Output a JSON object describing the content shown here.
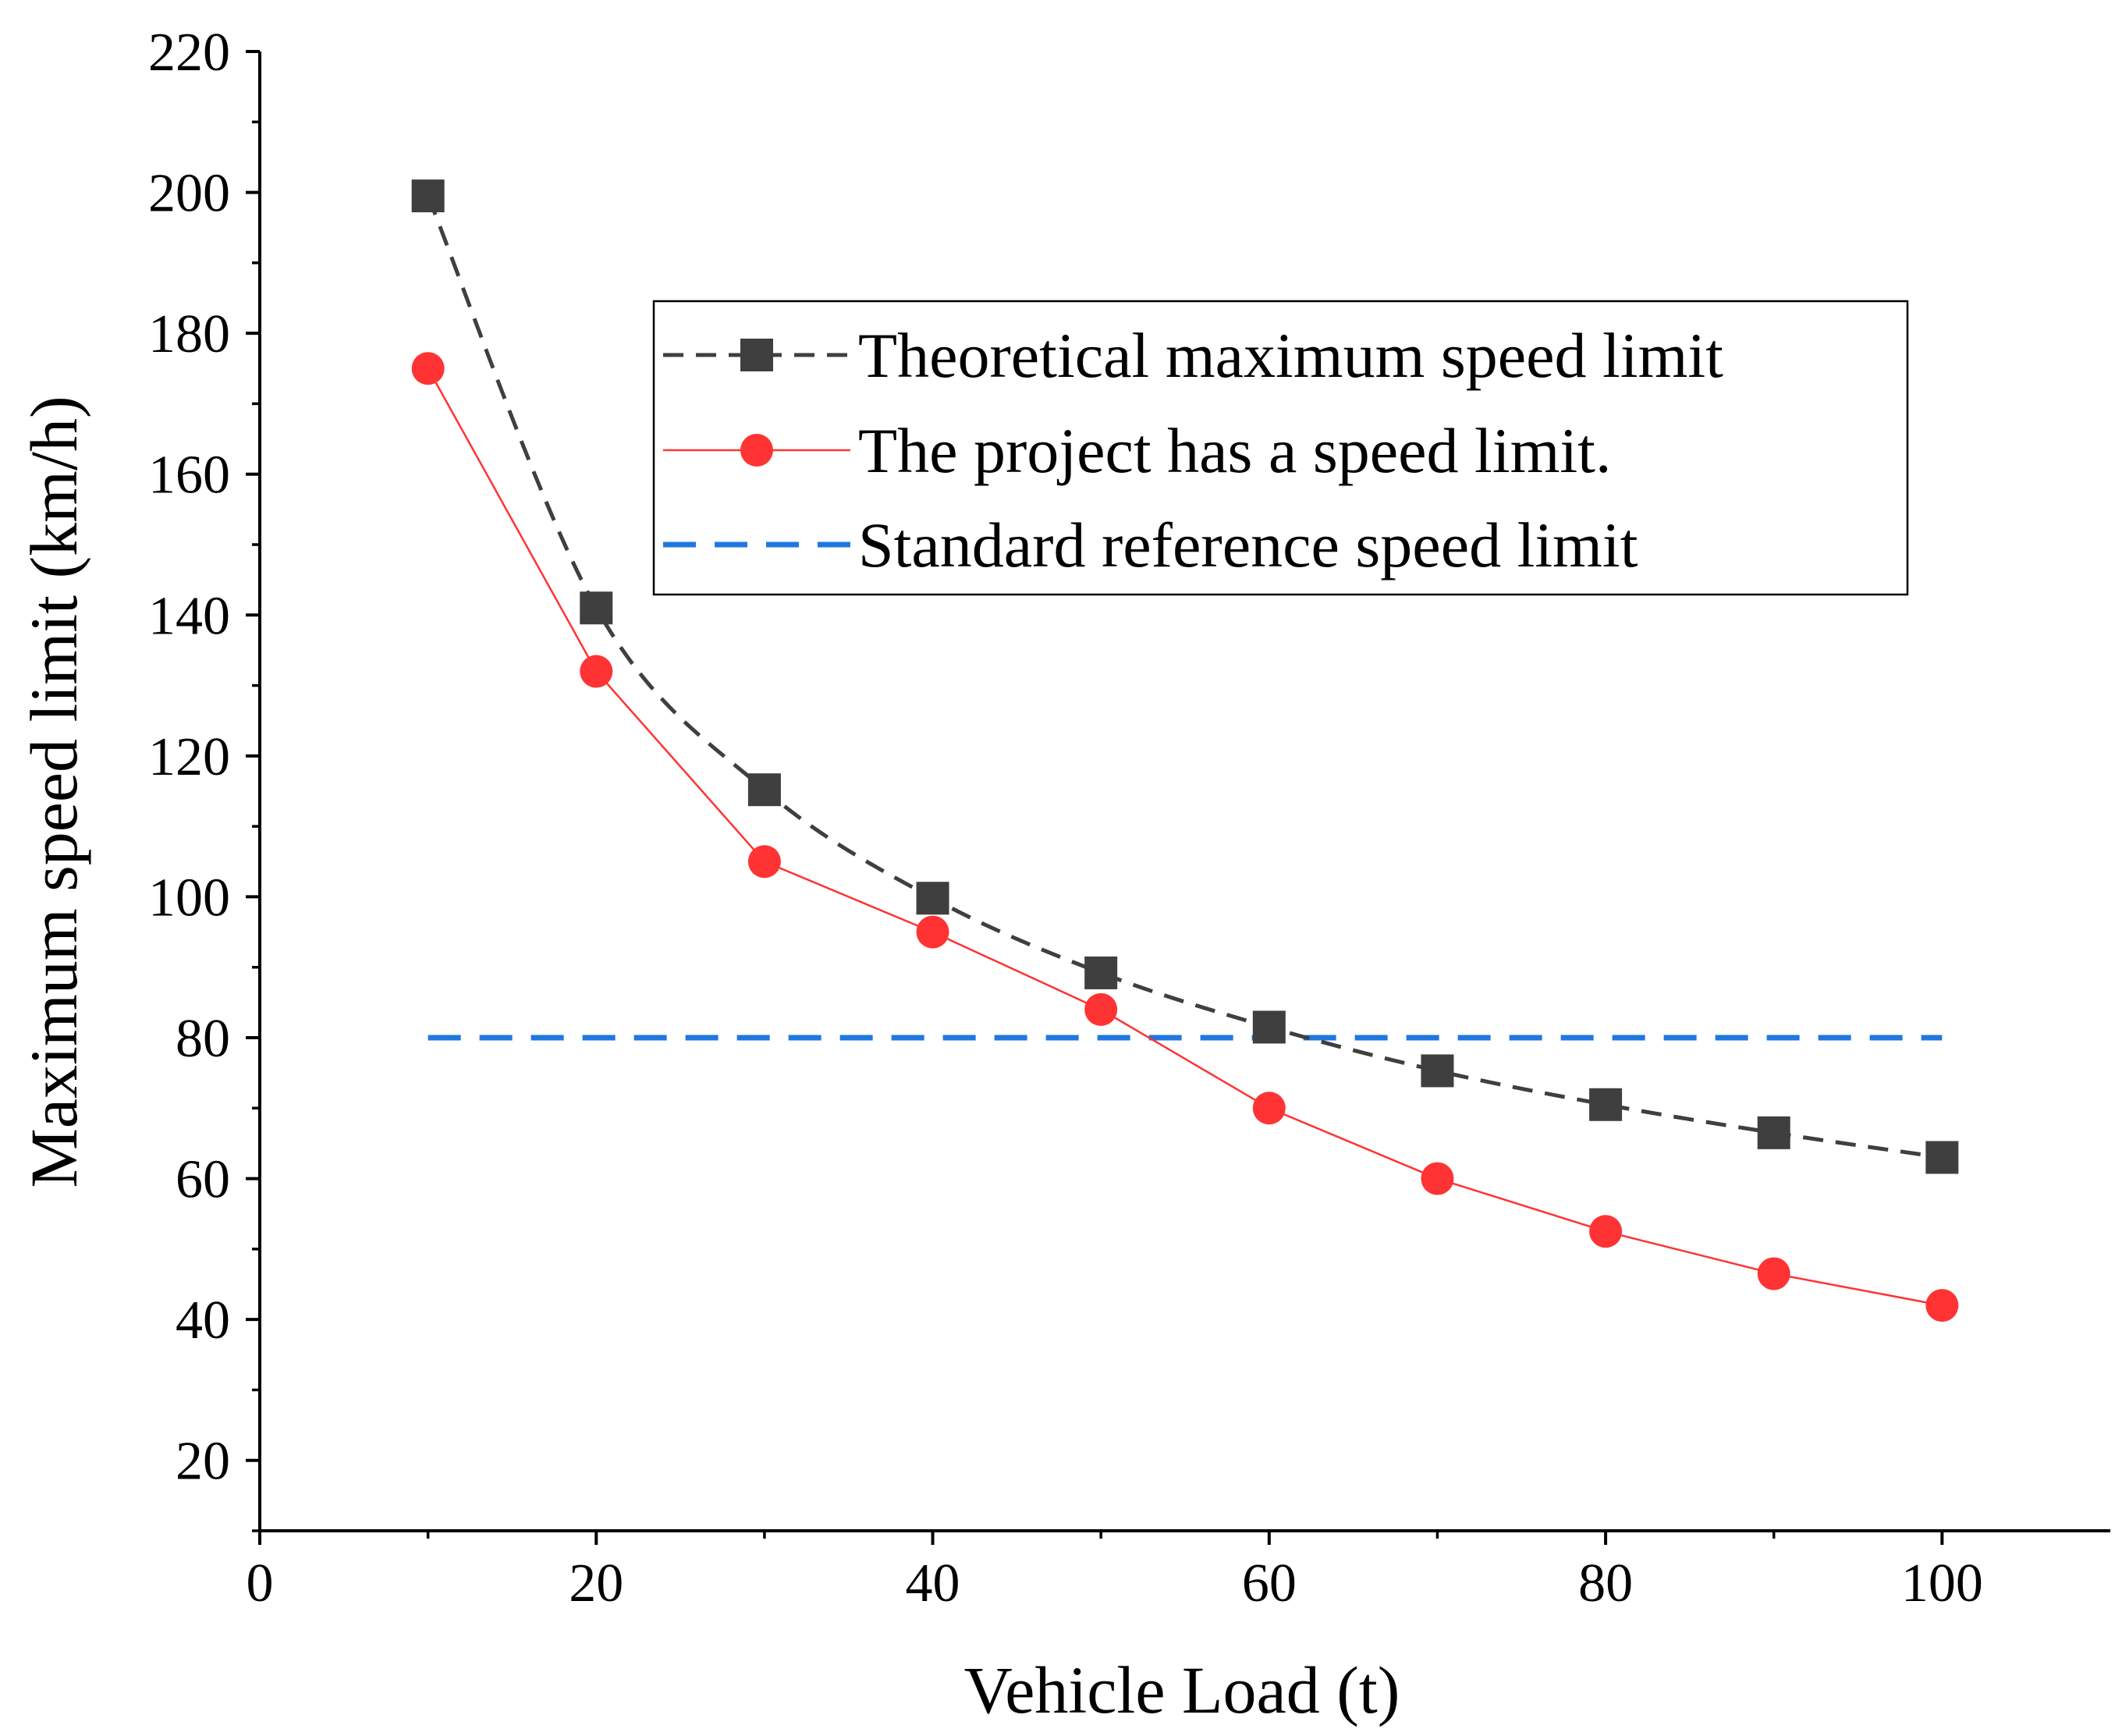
{
  "chart_data": {
    "type": "line",
    "xlabel": "Vehicle Load (t)",
    "ylabel": "Maximum speed limit (km/h)",
    "xlim": [
      0,
      110
    ],
    "ylim": [
      10,
      220
    ],
    "x_ticks": [
      0,
      20,
      40,
      60,
      80,
      100
    ],
    "x_tick_labels": [
      "0",
      "20",
      "40",
      "60",
      "80",
      "100"
    ],
    "y_ticks": [
      20,
      40,
      60,
      80,
      100,
      120,
      140,
      160,
      180,
      200,
      220
    ],
    "y_tick_labels": [
      "20",
      "40",
      "60",
      "80",
      "100",
      "120",
      "140",
      "160",
      "180",
      "200",
      "220"
    ],
    "grid": false,
    "legend_position": "upper-right",
    "x": [
      10,
      20,
      30,
      40,
      50,
      60,
      70,
      80,
      90,
      100
    ],
    "series": [
      {
        "name": "Theoretical maximum speed limit",
        "values": [
          199.5,
          141,
          115.2,
          99.8,
          89.2,
          81.5,
          75.3,
          70.5,
          66.5,
          63
        ],
        "color": "#3f3f3f",
        "line": "dashed",
        "marker": "square"
      },
      {
        "name": "The project has a speed limit.",
        "values": [
          175,
          132,
          105,
          95,
          84,
          70,
          60,
          52.5,
          46.5,
          42
        ],
        "color": "#ff3333",
        "line": "solid",
        "marker": "circle"
      },
      {
        "name": "Standard reference speed limit",
        "x_range": [
          10,
          100
        ],
        "value": 80,
        "color": "#1f77e0",
        "line": "dashed",
        "marker": "none"
      }
    ]
  }
}
